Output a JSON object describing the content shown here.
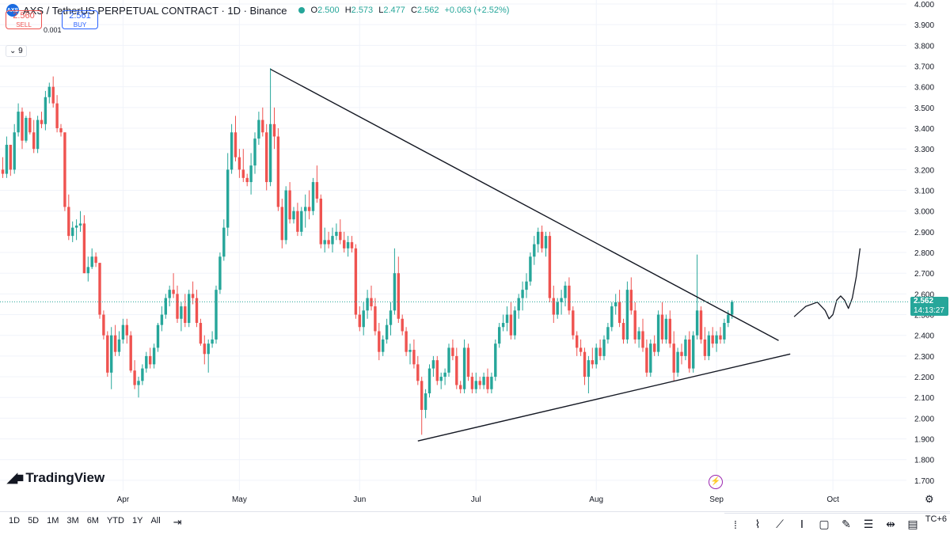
{
  "header": {
    "symbol": "AXS / TetherUS PERPETUAL CONTRACT · 1D · Binance",
    "open_label": "O",
    "open": "2.500",
    "high_label": "H",
    "high": "2.573",
    "low_label": "L",
    "low": "2.477",
    "close_label": "C",
    "close": "2.562",
    "change": "+0.063 (+2.52%)"
  },
  "trade": {
    "sell_price": "2.560",
    "sell_label": "SELL",
    "spread": "0.001",
    "buy_price": "2.561",
    "buy_label": "BUY"
  },
  "indicators_toggle": "9",
  "brand": "TradingView",
  "last_price": {
    "value": "2.562",
    "countdown": "14:13:27"
  },
  "ranges": [
    "1D",
    "5D",
    "1M",
    "3M",
    "6M",
    "YTD",
    "1Y",
    "All"
  ],
  "timezone": "TC+6",
  "colors": {
    "up": "#26a69a",
    "down": "#ef5350",
    "trendline": "#131722",
    "grid": "#f0f3fa"
  },
  "chart_data": {
    "type": "candlestick",
    "yticks": [
      "4.000",
      "3.900",
      "3.800",
      "3.700",
      "3.600",
      "3.500",
      "3.400",
      "3.300",
      "3.200",
      "3.100",
      "3.000",
      "2.900",
      "2.800",
      "2.700",
      "2.600",
      "2.500",
      "2.400",
      "2.300",
      "2.200",
      "2.100",
      "2.000",
      "1.900",
      "1.800",
      "1.700"
    ],
    "ylim": [
      1.65,
      4.0
    ],
    "xticks": [
      "Apr",
      "May",
      "Jun",
      "Jul",
      "Aug",
      "Sep",
      "Oct"
    ],
    "tick_days": [
      31,
      61,
      92,
      122,
      153,
      184,
      214
    ],
    "trendlines": [
      {
        "from": [
          69,
          3.685
        ],
        "to": [
          200,
          2.375
        ]
      },
      {
        "from": [
          107,
          1.89
        ],
        "to": [
          203,
          2.31
        ]
      }
    ],
    "projection": [
      [
        204,
        2.49
      ],
      [
        207,
        2.54
      ],
      [
        210,
        2.56
      ],
      [
        212,
        2.52
      ],
      [
        213,
        2.48
      ],
      [
        214,
        2.5
      ],
      [
        215,
        2.57
      ],
      [
        216,
        2.59
      ],
      [
        217,
        2.57
      ],
      [
        218,
        2.53
      ],
      [
        219,
        2.58
      ],
      [
        220,
        2.68
      ],
      [
        221,
        2.82
      ]
    ],
    "candles": [
      [
        0,
        3.2,
        3.26,
        3.16,
        3.18
      ],
      [
        1,
        3.18,
        3.36,
        3.16,
        3.32
      ],
      [
        2,
        3.32,
        3.32,
        3.17,
        3.2
      ],
      [
        3,
        3.2,
        3.42,
        3.18,
        3.38
      ],
      [
        4,
        3.38,
        3.52,
        3.36,
        3.48
      ],
      [
        5,
        3.48,
        3.5,
        3.3,
        3.34
      ],
      [
        6,
        3.34,
        3.46,
        3.33,
        3.45
      ],
      [
        7,
        3.45,
        3.48,
        3.37,
        3.38
      ],
      [
        8,
        3.38,
        3.44,
        3.28,
        3.3
      ],
      [
        9,
        3.3,
        3.46,
        3.28,
        3.44
      ],
      [
        10,
        3.44,
        3.48,
        3.4,
        3.42
      ],
      [
        11,
        3.42,
        3.58,
        3.39,
        3.55
      ],
      [
        12,
        3.55,
        3.62,
        3.52,
        3.6
      ],
      [
        13,
        3.6,
        3.65,
        3.5,
        3.52
      ],
      [
        14,
        3.52,
        3.56,
        3.38,
        3.4
      ],
      [
        15,
        3.4,
        3.42,
        3.36,
        3.38
      ],
      [
        16,
        3.38,
        3.38,
        3.0,
        3.02
      ],
      [
        17,
        3.02,
        3.08,
        2.86,
        2.88
      ],
      [
        18,
        2.88,
        2.95,
        2.85,
        2.92
      ],
      [
        19,
        2.92,
        2.96,
        2.86,
        2.93
      ],
      [
        20,
        2.93,
        3.0,
        2.9,
        2.94
      ],
      [
        21,
        2.94,
        2.98,
        2.7,
        2.7
      ],
      [
        22,
        2.7,
        2.78,
        2.66,
        2.73
      ],
      [
        23,
        2.73,
        2.82,
        2.72,
        2.78
      ],
      [
        24,
        2.78,
        2.8,
        2.73,
        2.75
      ],
      [
        25,
        2.75,
        2.75,
        2.48,
        2.5
      ],
      [
        26,
        2.5,
        2.52,
        2.38,
        2.4
      ],
      [
        27,
        2.4,
        2.42,
        2.2,
        2.22
      ],
      [
        28,
        2.22,
        2.44,
        2.14,
        2.4
      ],
      [
        29,
        2.4,
        2.45,
        2.3,
        2.32
      ],
      [
        30,
        2.32,
        2.42,
        2.3,
        2.38
      ],
      [
        31,
        2.38,
        2.48,
        2.36,
        2.45
      ],
      [
        32,
        2.45,
        2.48,
        2.36,
        2.4
      ],
      [
        33,
        2.4,
        2.42,
        2.22,
        2.23
      ],
      [
        34,
        2.23,
        2.28,
        2.14,
        2.16
      ],
      [
        35,
        2.16,
        2.2,
        2.1,
        2.18
      ],
      [
        36,
        2.18,
        2.26,
        2.16,
        2.24
      ],
      [
        37,
        2.24,
        2.32,
        2.22,
        2.3
      ],
      [
        38,
        2.3,
        2.34,
        2.24,
        2.26
      ],
      [
        39,
        2.26,
        2.36,
        2.24,
        2.34
      ],
      [
        40,
        2.34,
        2.46,
        2.32,
        2.45
      ],
      [
        41,
        2.45,
        2.54,
        2.42,
        2.5
      ],
      [
        42,
        2.5,
        2.6,
        2.48,
        2.58
      ],
      [
        43,
        2.58,
        2.64,
        2.54,
        2.62
      ],
      [
        44,
        2.62,
        2.7,
        2.58,
        2.6
      ],
      [
        45,
        2.6,
        2.64,
        2.46,
        2.48
      ],
      [
        46,
        2.48,
        2.56,
        2.42,
        2.54
      ],
      [
        47,
        2.54,
        2.6,
        2.44,
        2.46
      ],
      [
        48,
        2.46,
        2.62,
        2.44,
        2.6
      ],
      [
        49,
        2.6,
        2.66,
        2.55,
        2.58
      ],
      [
        50,
        2.58,
        2.62,
        2.44,
        2.46
      ],
      [
        51,
        2.46,
        2.48,
        2.35,
        2.36
      ],
      [
        52,
        2.36,
        2.4,
        2.26,
        2.31
      ],
      [
        53,
        2.31,
        2.38,
        2.22,
        2.36
      ],
      [
        54,
        2.36,
        2.42,
        2.34,
        2.38
      ],
      [
        55,
        2.38,
        2.64,
        2.36,
        2.62
      ],
      [
        56,
        2.62,
        2.8,
        2.6,
        2.78
      ],
      [
        57,
        2.78,
        2.96,
        2.76,
        2.92
      ],
      [
        58,
        2.92,
        3.28,
        2.88,
        3.2
      ],
      [
        59,
        3.2,
        3.42,
        3.18,
        3.38
      ],
      [
        60,
        3.38,
        3.46,
        3.24,
        3.26
      ],
      [
        61,
        3.26,
        3.3,
        3.16,
        3.2
      ],
      [
        62,
        3.2,
        3.3,
        3.14,
        3.16
      ],
      [
        63,
        3.16,
        3.18,
        3.12,
        3.14
      ],
      [
        64,
        3.14,
        3.28,
        3.08,
        3.22
      ],
      [
        65,
        3.22,
        3.38,
        3.18,
        3.35
      ],
      [
        66,
        3.35,
        3.48,
        3.32,
        3.44
      ],
      [
        67,
        3.44,
        3.5,
        3.36,
        3.38
      ],
      [
        68,
        3.38,
        3.42,
        3.1,
        3.14
      ],
      [
        69,
        3.14,
        3.69,
        3.12,
        3.42
      ],
      [
        70,
        3.42,
        3.5,
        3.3,
        3.36
      ],
      [
        71,
        3.36,
        3.4,
        3.0,
        3.02
      ],
      [
        72,
        3.02,
        3.06,
        2.82,
        2.86
      ],
      [
        73,
        2.86,
        3.12,
        2.84,
        3.1
      ],
      [
        74,
        3.1,
        3.14,
        2.94,
        2.96
      ],
      [
        75,
        2.96,
        3.02,
        2.94,
        3.0
      ],
      [
        76,
        3.0,
        3.04,
        2.88,
        2.9
      ],
      [
        77,
        2.9,
        3.02,
        2.88,
        3.0
      ],
      [
        78,
        3.0,
        3.08,
        2.92,
        3.02
      ],
      [
        79,
        3.02,
        3.1,
        2.96,
        3.0
      ],
      [
        80,
        3.0,
        3.16,
        2.98,
        3.14
      ],
      [
        81,
        3.14,
        3.22,
        3.04,
        3.06
      ],
      [
        82,
        3.06,
        3.08,
        2.82,
        2.84
      ],
      [
        83,
        2.84,
        2.92,
        2.8,
        2.86
      ],
      [
        84,
        2.86,
        2.9,
        2.82,
        2.84
      ],
      [
        85,
        2.84,
        2.92,
        2.8,
        2.88
      ],
      [
        86,
        2.88,
        2.94,
        2.86,
        2.9
      ],
      [
        87,
        2.9,
        2.96,
        2.84,
        2.86
      ],
      [
        88,
        2.86,
        2.9,
        2.8,
        2.82
      ],
      [
        89,
        2.82,
        2.88,
        2.78,
        2.85
      ],
      [
        90,
        2.85,
        2.88,
        2.8,
        2.82
      ],
      [
        91,
        2.82,
        2.84,
        2.48,
        2.5
      ],
      [
        92,
        2.5,
        2.54,
        2.42,
        2.44
      ],
      [
        93,
        2.44,
        2.56,
        2.4,
        2.52
      ],
      [
        94,
        2.52,
        2.62,
        2.48,
        2.58
      ],
      [
        95,
        2.58,
        2.64,
        2.52,
        2.54
      ],
      [
        96,
        2.54,
        2.58,
        2.4,
        2.42
      ],
      [
        97,
        2.42,
        2.46,
        2.28,
        2.32
      ],
      [
        98,
        2.32,
        2.4,
        2.3,
        2.38
      ],
      [
        99,
        2.38,
        2.48,
        2.36,
        2.45
      ],
      [
        100,
        2.45,
        2.56,
        2.4,
        2.52
      ],
      [
        101,
        2.52,
        2.82,
        2.5,
        2.7
      ],
      [
        102,
        2.7,
        2.78,
        2.46,
        2.48
      ],
      [
        103,
        2.48,
        2.5,
        2.4,
        2.42
      ],
      [
        104,
        2.42,
        2.44,
        2.3,
        2.32
      ],
      [
        105,
        2.32,
        2.36,
        2.26,
        2.33
      ],
      [
        106,
        2.33,
        2.38,
        2.24,
        2.26
      ],
      [
        107,
        2.26,
        2.3,
        2.16,
        2.18
      ],
      [
        108,
        2.18,
        2.2,
        1.92,
        2.04
      ],
      [
        109,
        2.04,
        2.14,
        2.0,
        2.12
      ],
      [
        110,
        2.12,
        2.26,
        2.1,
        2.24
      ],
      [
        111,
        2.24,
        2.3,
        2.2,
        2.28
      ],
      [
        112,
        2.28,
        2.3,
        2.16,
        2.18
      ],
      [
        113,
        2.18,
        2.22,
        2.14,
        2.2
      ],
      [
        114,
        2.2,
        2.24,
        2.16,
        2.22
      ],
      [
        115,
        2.22,
        2.36,
        2.2,
        2.34
      ],
      [
        116,
        2.34,
        2.38,
        2.28,
        2.3
      ],
      [
        117,
        2.3,
        2.34,
        2.14,
        2.16
      ],
      [
        118,
        2.16,
        2.18,
        2.12,
        2.14
      ],
      [
        119,
        2.14,
        2.38,
        2.12,
        2.34
      ],
      [
        120,
        2.34,
        2.36,
        2.18,
        2.2
      ],
      [
        121,
        2.2,
        2.22,
        2.12,
        2.14
      ],
      [
        122,
        2.14,
        2.22,
        2.12,
        2.18
      ],
      [
        123,
        2.18,
        2.2,
        2.14,
        2.16
      ],
      [
        124,
        2.16,
        2.22,
        2.14,
        2.2
      ],
      [
        125,
        2.2,
        2.24,
        2.12,
        2.14
      ],
      [
        126,
        2.14,
        2.22,
        2.12,
        2.2
      ],
      [
        127,
        2.2,
        2.38,
        2.18,
        2.36
      ],
      [
        128,
        2.36,
        2.46,
        2.34,
        2.44
      ],
      [
        129,
        2.44,
        2.5,
        2.42,
        2.46
      ],
      [
        130,
        2.46,
        2.54,
        2.42,
        2.5
      ],
      [
        131,
        2.5,
        2.56,
        2.38,
        2.4
      ],
      [
        132,
        2.4,
        2.54,
        2.38,
        2.52
      ],
      [
        133,
        2.52,
        2.6,
        2.48,
        2.58
      ],
      [
        134,
        2.58,
        2.66,
        2.52,
        2.62
      ],
      [
        135,
        2.62,
        2.7,
        2.58,
        2.66
      ],
      [
        136,
        2.66,
        2.8,
        2.64,
        2.78
      ],
      [
        137,
        2.78,
        2.88,
        2.74,
        2.84
      ],
      [
        138,
        2.84,
        2.92,
        2.8,
        2.9
      ],
      [
        139,
        2.9,
        2.93,
        2.8,
        2.82
      ],
      [
        140,
        2.82,
        2.9,
        2.78,
        2.88
      ],
      [
        141,
        2.88,
        2.9,
        2.56,
        2.58
      ],
      [
        142,
        2.58,
        2.64,
        2.46,
        2.5
      ],
      [
        143,
        2.5,
        2.58,
        2.48,
        2.56
      ],
      [
        144,
        2.56,
        2.62,
        2.5,
        2.58
      ],
      [
        145,
        2.58,
        2.66,
        2.54,
        2.64
      ],
      [
        146,
        2.64,
        2.68,
        2.5,
        2.52
      ],
      [
        147,
        2.52,
        2.54,
        2.38,
        2.4
      ],
      [
        148,
        2.4,
        2.42,
        2.3,
        2.34
      ],
      [
        149,
        2.34,
        2.38,
        2.3,
        2.32
      ],
      [
        150,
        2.32,
        2.34,
        2.16,
        2.2
      ],
      [
        151,
        2.2,
        2.3,
        2.12,
        2.28
      ],
      [
        152,
        2.28,
        2.34,
        2.24,
        2.26
      ],
      [
        153,
        2.26,
        2.36,
        2.24,
        2.34
      ],
      [
        154,
        2.34,
        2.38,
        2.28,
        2.3
      ],
      [
        155,
        2.3,
        2.4,
        2.28,
        2.38
      ],
      [
        156,
        2.38,
        2.46,
        2.36,
        2.44
      ],
      [
        157,
        2.44,
        2.56,
        2.42,
        2.54
      ],
      [
        158,
        2.54,
        2.6,
        2.5,
        2.56
      ],
      [
        159,
        2.56,
        2.62,
        2.44,
        2.46
      ],
      [
        160,
        2.46,
        2.48,
        2.36,
        2.38
      ],
      [
        161,
        2.38,
        2.66,
        2.36,
        2.62
      ],
      [
        162,
        2.62,
        2.68,
        2.5,
        2.52
      ],
      [
        163,
        2.52,
        2.56,
        2.36,
        2.38
      ],
      [
        164,
        2.38,
        2.44,
        2.34,
        2.42
      ],
      [
        165,
        2.42,
        2.48,
        2.32,
        2.34
      ],
      [
        166,
        2.34,
        2.38,
        2.2,
        2.22
      ],
      [
        167,
        2.22,
        2.38,
        2.2,
        2.36
      ],
      [
        168,
        2.36,
        2.4,
        2.3,
        2.32
      ],
      [
        169,
        2.32,
        2.52,
        2.3,
        2.5
      ],
      [
        170,
        2.5,
        2.56,
        2.36,
        2.38
      ],
      [
        171,
        2.38,
        2.5,
        2.36,
        2.48
      ],
      [
        172,
        2.48,
        2.52,
        2.34,
        2.36
      ],
      [
        173,
        2.36,
        2.42,
        2.18,
        2.22
      ],
      [
        174,
        2.22,
        2.34,
        2.2,
        2.32
      ],
      [
        175,
        2.32,
        2.36,
        2.26,
        2.3
      ],
      [
        176,
        2.3,
        2.4,
        2.28,
        2.38
      ],
      [
        177,
        2.38,
        2.42,
        2.22,
        2.24
      ],
      [
        178,
        2.24,
        2.42,
        2.22,
        2.4
      ],
      [
        179,
        2.4,
        2.79,
        2.38,
        2.52
      ],
      [
        180,
        2.52,
        2.54,
        2.36,
        2.38
      ],
      [
        181,
        2.38,
        2.44,
        2.28,
        2.3
      ],
      [
        182,
        2.3,
        2.42,
        2.28,
        2.4
      ],
      [
        183,
        2.4,
        2.44,
        2.34,
        2.36
      ],
      [
        184,
        2.36,
        2.42,
        2.32,
        2.4
      ],
      [
        185,
        2.4,
        2.44,
        2.36,
        2.38
      ],
      [
        186,
        2.38,
        2.48,
        2.36,
        2.46
      ],
      [
        187,
        2.46,
        2.52,
        2.44,
        2.5
      ],
      [
        188,
        2.5,
        2.57,
        2.48,
        2.562
      ]
    ]
  }
}
